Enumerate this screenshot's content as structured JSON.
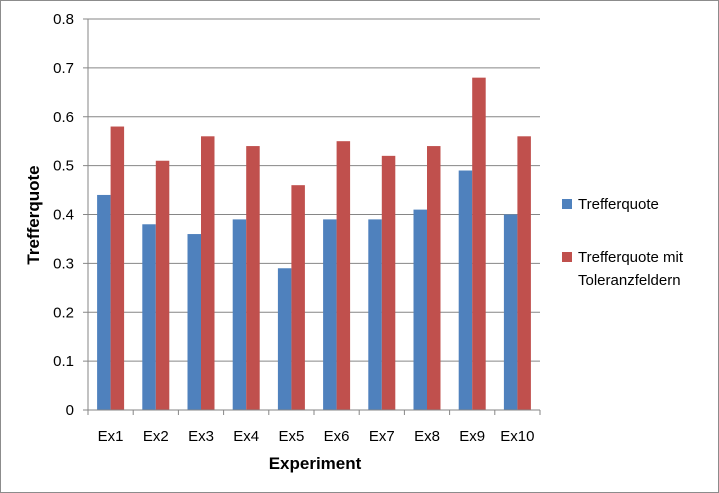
{
  "chart_data": {
    "type": "bar",
    "xlabel": "Experiment",
    "ylabel": "Trefferquote",
    "ylim": [
      0,
      0.8
    ],
    "yticks": [
      "0",
      "0.1",
      "0.2",
      "0.3",
      "0.4",
      "0.5",
      "0.6",
      "0.7",
      "0.8"
    ],
    "grid": true,
    "legend_position": "right",
    "categories": [
      "Ex1",
      "Ex2",
      "Ex3",
      "Ex4",
      "Ex5",
      "Ex6",
      "Ex7",
      "Ex8",
      "Ex9",
      "Ex10"
    ],
    "series": [
      {
        "name": "Trefferquote",
        "color": "#4f81bd",
        "values": [
          0.44,
          0.38,
          0.36,
          0.39,
          0.29,
          0.39,
          0.39,
          0.41,
          0.49,
          0.4
        ]
      },
      {
        "name": "Trefferquote mit Toleranzfeldern",
        "legend_lines": [
          "Trefferquote mit",
          "Toleranzfeldern"
        ],
        "color": "#c0504d",
        "values": [
          0.58,
          0.51,
          0.56,
          0.54,
          0.46,
          0.55,
          0.52,
          0.54,
          0.68,
          0.56
        ]
      }
    ]
  }
}
